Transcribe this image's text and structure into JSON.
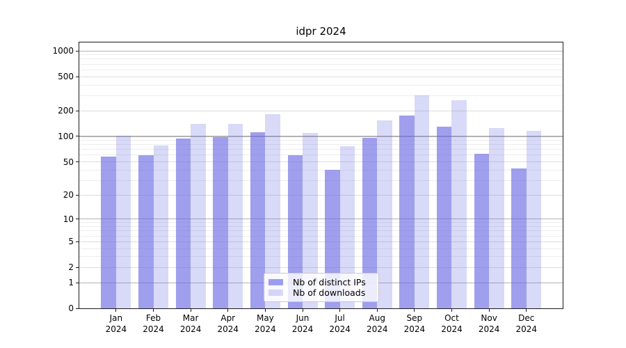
{
  "title": "idpr 2024",
  "chart_data": {
    "type": "bar",
    "title": "idpr 2024",
    "categories": [
      "Jan",
      "Feb",
      "Mar",
      "Apr",
      "May",
      "Jun",
      "Jul",
      "Aug",
      "Sep",
      "Oct",
      "Nov",
      "Dec"
    ],
    "x_tick_second_line": "2024",
    "series": [
      {
        "name": "Nb of distinct IPs",
        "color": "rgba(103, 103, 228, 0.63)",
        "values": [
          58,
          60,
          95,
          98,
          112,
          60,
          40,
          96,
          174,
          130,
          62,
          42
        ]
      },
      {
        "name": "Nb of downloads",
        "color": "rgba(103, 103, 228, 0.25)",
        "values": [
          102,
          78,
          141,
          139,
          182,
          110,
          77,
          153,
          300,
          265,
          126,
          116
        ]
      }
    ],
    "y_scale": "log10(1+v)",
    "y_ticks": [
      0,
      1,
      2,
      5,
      10,
      20,
      50,
      100,
      200,
      500,
      1000
    ],
    "y_range": [
      0,
      1000
    ],
    "grid": "on",
    "legend_position": "lower center",
    "grid_colors": {
      "decade": "#b2b2b2",
      "labeled": "#dddddd",
      "minor": "#ededed"
    }
  }
}
